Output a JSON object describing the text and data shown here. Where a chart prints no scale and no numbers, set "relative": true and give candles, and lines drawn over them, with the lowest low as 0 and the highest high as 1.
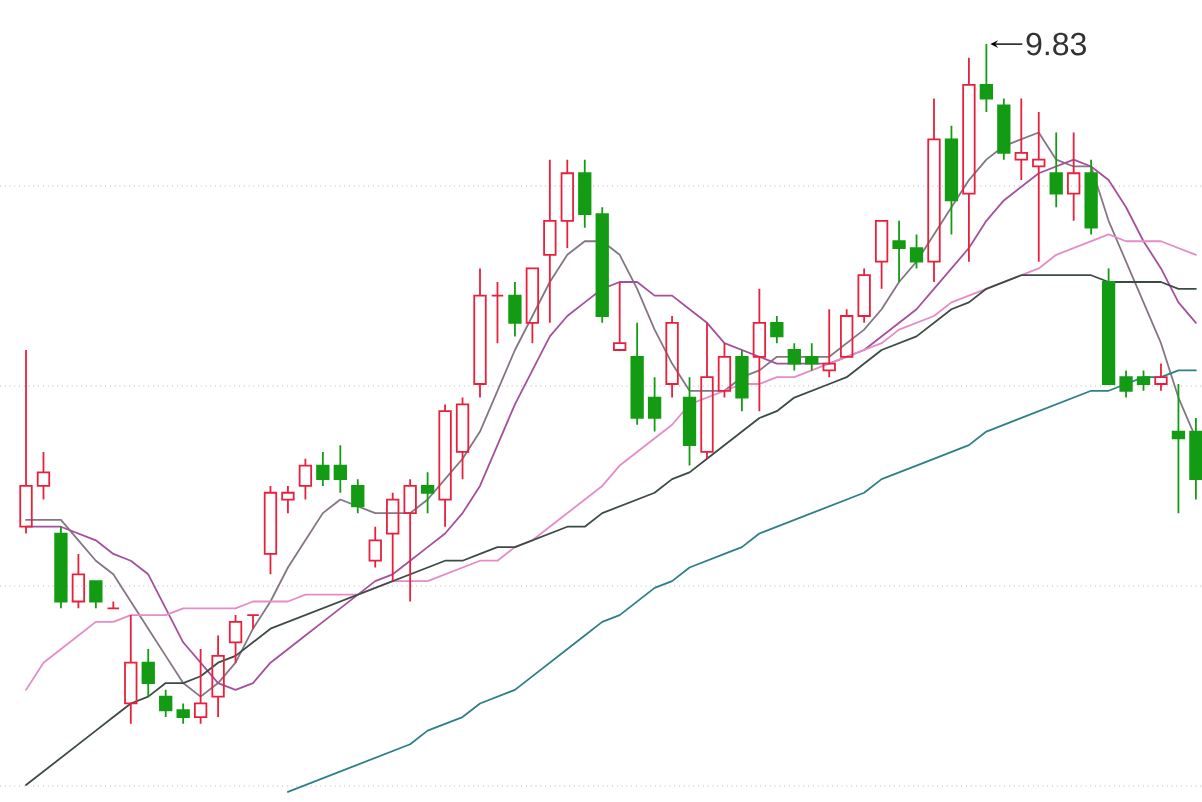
{
  "chart_data": {
    "type": "candlestick",
    "relative": true,
    "grid": "y",
    "categories": [
      null,
      null,
      null,
      null,
      null,
      null,
      null,
      null,
      null,
      null,
      null,
      null,
      null,
      null,
      null,
      null,
      null,
      null,
      null,
      null,
      null,
      null,
      null,
      null,
      null,
      null,
      null,
      null,
      null,
      null,
      null,
      null,
      null,
      null,
      null,
      null,
      null,
      null,
      null,
      null,
      null,
      null,
      null,
      null,
      null,
      null,
      null,
      null,
      null,
      null,
      null,
      null,
      null,
      null,
      null,
      null,
      null,
      null,
      null,
      null,
      null,
      null,
      null,
      null,
      null,
      null,
      null,
      null
    ],
    "ohlc": [
      [
        0.29,
        0.55,
        0.28,
        0.35
      ],
      [
        0.35,
        0.4,
        0.33,
        0.37
      ],
      [
        0.28,
        0.29,
        0.17,
        0.18
      ],
      [
        0.18,
        0.25,
        0.17,
        0.22
      ],
      [
        0.21,
        0.21,
        0.17,
        0.18
      ],
      [
        0.17,
        0.18,
        0.17,
        0.17
      ],
      [
        0.03,
        0.16,
        0.0,
        0.09
      ],
      [
        0.09,
        0.11,
        0.04,
        0.06
      ],
      [
        0.04,
        0.05,
        0.01,
        0.02
      ],
      [
        0.02,
        0.03,
        0.0,
        0.01
      ],
      [
        0.01,
        0.11,
        0.0,
        0.03
      ],
      [
        0.04,
        0.13,
        0.01,
        0.1
      ],
      [
        0.12,
        0.16,
        0.09,
        0.15
      ],
      [
        0.16,
        0.16,
        0.14,
        0.16
      ],
      [
        0.25,
        0.35,
        0.22,
        0.34
      ],
      [
        0.33,
        0.35,
        0.31,
        0.34
      ],
      [
        0.35,
        0.39,
        0.33,
        0.38
      ],
      [
        0.38,
        0.4,
        0.35,
        0.36
      ],
      [
        0.38,
        0.41,
        0.34,
        0.36
      ],
      [
        0.35,
        0.36,
        0.31,
        0.32
      ],
      [
        0.24,
        0.29,
        0.23,
        0.27
      ],
      [
        0.28,
        0.34,
        0.21,
        0.33
      ],
      [
        0.31,
        0.36,
        0.18,
        0.35
      ],
      [
        0.35,
        0.37,
        0.31,
        0.34
      ],
      [
        0.33,
        0.47,
        0.29,
        0.46
      ],
      [
        0.4,
        0.48,
        0.36,
        0.47
      ],
      [
        0.5,
        0.67,
        0.48,
        0.63
      ],
      [
        0.63,
        0.65,
        0.56,
        0.63
      ],
      [
        0.63,
        0.65,
        0.57,
        0.59
      ],
      [
        0.59,
        0.67,
        0.56,
        0.67
      ],
      [
        0.69,
        0.83,
        0.59,
        0.74
      ],
      [
        0.74,
        0.83,
        0.7,
        0.81
      ],
      [
        0.81,
        0.83,
        0.73,
        0.75
      ],
      [
        0.75,
        0.76,
        0.59,
        0.6
      ],
      [
        0.55,
        0.65,
        0.55,
        0.56
      ],
      [
        0.54,
        0.59,
        0.44,
        0.45
      ],
      [
        0.48,
        0.51,
        0.43,
        0.45
      ],
      [
        0.5,
        0.6,
        0.48,
        0.59
      ],
      [
        0.48,
        0.51,
        0.38,
        0.41
      ],
      [
        0.4,
        0.59,
        0.39,
        0.51
      ],
      [
        0.49,
        0.56,
        0.48,
        0.54
      ],
      [
        0.54,
        0.55,
        0.46,
        0.48
      ],
      [
        0.54,
        0.64,
        0.46,
        0.59
      ],
      [
        0.59,
        0.6,
        0.56,
        0.57
      ],
      [
        0.55,
        0.56,
        0.52,
        0.53
      ],
      [
        0.54,
        0.56,
        0.52,
        0.53
      ],
      [
        0.52,
        0.61,
        0.51,
        0.53
      ],
      [
        0.54,
        0.61,
        0.54,
        0.6
      ],
      [
        0.6,
        0.67,
        0.59,
        0.66
      ],
      [
        0.68,
        0.74,
        0.64,
        0.74
      ],
      [
        0.71,
        0.74,
        0.65,
        0.7
      ],
      [
        0.7,
        0.72,
        0.67,
        0.68
      ],
      [
        0.68,
        0.92,
        0.65,
        0.86
      ],
      [
        0.86,
        0.88,
        0.72,
        0.77
      ],
      [
        0.78,
        0.98,
        0.68,
        0.94
      ],
      [
        0.94,
        1.0,
        0.9,
        0.92
      ],
      [
        0.91,
        0.92,
        0.83,
        0.84
      ],
      [
        0.83,
        0.92,
        0.8,
        0.84
      ],
      [
        0.82,
        0.9,
        0.68,
        0.83
      ],
      [
        0.81,
        0.87,
        0.76,
        0.78
      ],
      [
        0.78,
        0.87,
        0.74,
        0.81
      ],
      [
        0.81,
        0.83,
        0.72,
        0.73
      ],
      [
        0.65,
        0.67,
        0.5,
        0.5
      ],
      [
        0.51,
        0.52,
        0.48,
        0.49
      ],
      [
        0.51,
        0.52,
        0.49,
        0.5
      ],
      [
        0.5,
        0.53,
        0.49,
        0.51
      ],
      [
        0.43,
        0.5,
        0.31,
        0.42
      ],
      [
        0.43,
        0.45,
        0.33,
        0.36
      ]
    ],
    "colors": [
      "#e8203c",
      "#e8203c",
      "#139c13",
      "#e8203c",
      "#139c13",
      "#e8203c",
      "#e8203c",
      "#139c13",
      "#139c13",
      "#139c13",
      "#e8203c",
      "#e8203c",
      "#e8203c",
      "#e8203c",
      "#e8203c",
      "#e8203c",
      "#e8203c",
      "#139c13",
      "#139c13",
      "#139c13",
      "#e8203c",
      "#e8203c",
      "#e8203c",
      "#139c13",
      "#e8203c",
      "#e8203c",
      "#e8203c",
      "#e8203c",
      "#139c13",
      "#e8203c",
      "#e8203c",
      "#e8203c",
      "#139c13",
      "#139c13",
      "#e8203c",
      "#139c13",
      "#139c13",
      "#e8203c",
      "#139c13",
      "#e8203c",
      "#e8203c",
      "#139c13",
      "#e8203c",
      "#139c13",
      "#139c13",
      "#139c13",
      "#e8203c",
      "#e8203c",
      "#e8203c",
      "#e8203c",
      "#139c13",
      "#139c13",
      "#e8203c",
      "#139c13",
      "#e8203c",
      "#139c13",
      "#139c13",
      "#e8203c",
      "#e8203c",
      "#139c13",
      "#e8203c",
      "#139c13",
      "#139c13",
      "#139c13",
      "#139c13",
      "#e8203c",
      "#139c13",
      "#139c13"
    ],
    "series": [
      {
        "type": "line",
        "color": "#857585",
        "values": [
          0.3,
          0.3,
          0.3,
          0.27,
          0.24,
          0.22,
          0.18,
          0.14,
          0.1,
          0.06,
          0.04,
          0.06,
          0.09,
          0.14,
          0.18,
          0.23,
          0.27,
          0.31,
          0.33,
          0.32,
          0.31,
          0.31,
          0.31,
          0.33,
          0.36,
          0.39,
          0.43,
          0.49,
          0.55,
          0.6,
          0.65,
          0.69,
          0.71,
          0.71,
          0.69,
          0.64,
          0.58,
          0.53,
          0.49,
          0.49,
          0.49,
          0.51,
          0.52,
          0.54,
          0.54,
          0.54,
          0.54,
          0.56,
          0.58,
          0.61,
          0.65,
          0.68,
          0.72,
          0.76,
          0.8,
          0.83,
          0.85,
          0.86,
          0.87,
          0.83,
          0.82,
          0.82,
          0.74,
          0.68,
          0.62,
          0.56,
          0.48,
          0.42
        ]
      },
      {
        "type": "line",
        "color": "#a4509c",
        "values": [
          0.29,
          0.29,
          0.29,
          0.28,
          0.27,
          0.25,
          0.24,
          0.22,
          0.17,
          0.12,
          0.09,
          0.06,
          0.05,
          0.06,
          0.09,
          0.11,
          0.13,
          0.15,
          0.17,
          0.19,
          0.21,
          0.22,
          0.24,
          0.26,
          0.28,
          0.31,
          0.35,
          0.41,
          0.47,
          0.52,
          0.57,
          0.6,
          0.62,
          0.64,
          0.65,
          0.65,
          0.63,
          0.63,
          0.61,
          0.59,
          0.56,
          0.55,
          0.54,
          0.53,
          0.53,
          0.53,
          0.53,
          0.54,
          0.55,
          0.57,
          0.59,
          0.61,
          0.64,
          0.67,
          0.7,
          0.74,
          0.77,
          0.79,
          0.81,
          0.82,
          0.83,
          0.82,
          0.8,
          0.76,
          0.71,
          0.67,
          0.62,
          0.59
        ]
      },
      {
        "type": "line",
        "color": "#e58cc8",
        "values": [
          0.05,
          0.09,
          0.11,
          0.13,
          0.15,
          0.15,
          0.16,
          0.16,
          0.16,
          0.17,
          0.17,
          0.17,
          0.17,
          0.18,
          0.18,
          0.18,
          0.19,
          0.19,
          0.19,
          0.19,
          0.2,
          0.21,
          0.21,
          0.21,
          0.22,
          0.23,
          0.24,
          0.24,
          0.26,
          0.27,
          0.29,
          0.31,
          0.33,
          0.35,
          0.38,
          0.4,
          0.42,
          0.44,
          0.47,
          0.48,
          0.49,
          0.5,
          0.5,
          0.51,
          0.51,
          0.52,
          0.53,
          0.54,
          0.55,
          0.56,
          0.58,
          0.59,
          0.6,
          0.62,
          0.63,
          0.64,
          0.65,
          0.66,
          0.67,
          0.69,
          0.7,
          0.71,
          0.72,
          0.71,
          0.71,
          0.71,
          0.7,
          0.69
        ]
      },
      {
        "type": "line",
        "color": "#3c4c44",
        "values": [
          -0.09,
          -0.07,
          -0.05,
          -0.03,
          -0.01,
          0.01,
          0.03,
          0.04,
          0.06,
          0.06,
          0.07,
          0.09,
          0.1,
          0.12,
          0.14,
          0.15,
          0.16,
          0.17,
          0.18,
          0.19,
          0.2,
          0.21,
          0.22,
          0.23,
          0.24,
          0.24,
          0.25,
          0.26,
          0.26,
          0.27,
          0.28,
          0.29,
          0.29,
          0.31,
          0.32,
          0.33,
          0.34,
          0.36,
          0.37,
          0.39,
          0.41,
          0.43,
          0.45,
          0.46,
          0.48,
          0.49,
          0.5,
          0.51,
          0.53,
          0.55,
          0.56,
          0.57,
          0.59,
          0.61,
          0.62,
          0.64,
          0.65,
          0.66,
          0.66,
          0.66,
          0.66,
          0.66,
          0.65,
          0.65,
          0.65,
          0.65,
          0.64,
          0.64
        ]
      },
      {
        "type": "line",
        "color": "#2f7f86",
        "values": [
          null,
          null,
          null,
          null,
          null,
          null,
          null,
          null,
          null,
          null,
          null,
          null,
          null,
          null,
          null,
          -0.1,
          -0.09,
          -0.08,
          -0.07,
          -0.06,
          -0.05,
          -0.04,
          -0.03,
          -0.01,
          0.0,
          0.01,
          0.03,
          0.04,
          0.05,
          0.07,
          0.09,
          0.11,
          0.13,
          0.15,
          0.16,
          0.18,
          0.2,
          0.21,
          0.23,
          0.24,
          0.25,
          0.26,
          0.28,
          0.29,
          0.3,
          0.31,
          0.32,
          0.33,
          0.34,
          0.36,
          0.37,
          0.38,
          0.39,
          0.4,
          0.41,
          0.43,
          0.44,
          0.45,
          0.46,
          0.47,
          0.48,
          0.49,
          0.49,
          0.5,
          0.51,
          0.51,
          0.52,
          0.52
        ]
      }
    ],
    "annotations": [
      "9.83"
    ]
  }
}
